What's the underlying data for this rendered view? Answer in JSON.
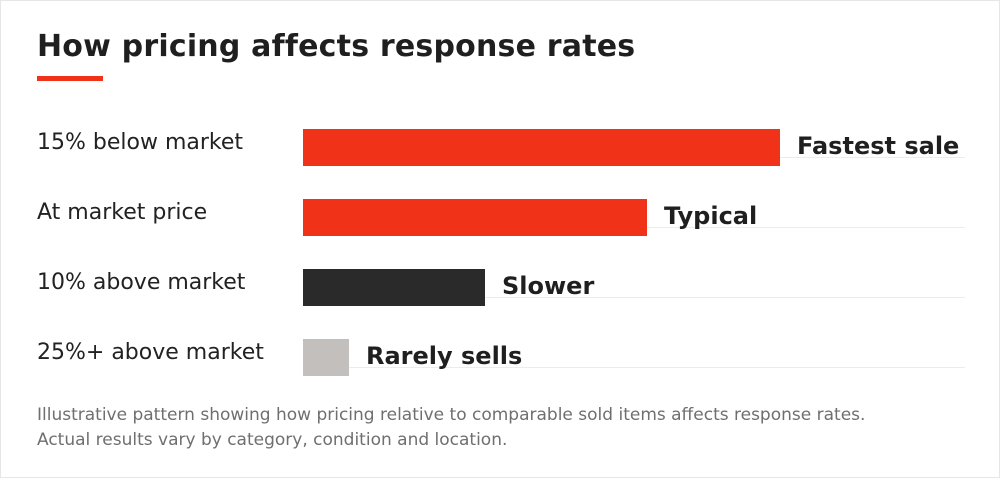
{
  "title": "How pricing affects response rates",
  "colors": {
    "accent": "#f03219",
    "dark": "#2a2a2a",
    "muted": "#c3bfbc"
  },
  "chart_data": {
    "type": "bar",
    "orientation": "horizontal",
    "categories": [
      "15% below market",
      "At market price",
      "10% above market",
      "25%+ above market"
    ],
    "values": [
      72,
      52,
      27.5,
      7
    ],
    "value_max": 100,
    "value_axis": "none",
    "bar_labels": [
      "Fastest sale",
      "Typical",
      "Slower",
      "Rarely sells"
    ],
    "bar_colors": [
      "#f03219",
      "#f03219",
      "#2a2a2a",
      "#c3bfbc"
    ],
    "grid": false,
    "legend": "none"
  },
  "footnote": {
    "line1": "Illustrative pattern showing how pricing relative to comparable sold items affects response rates.",
    "line2": "Actual results vary by category, condition and location."
  }
}
